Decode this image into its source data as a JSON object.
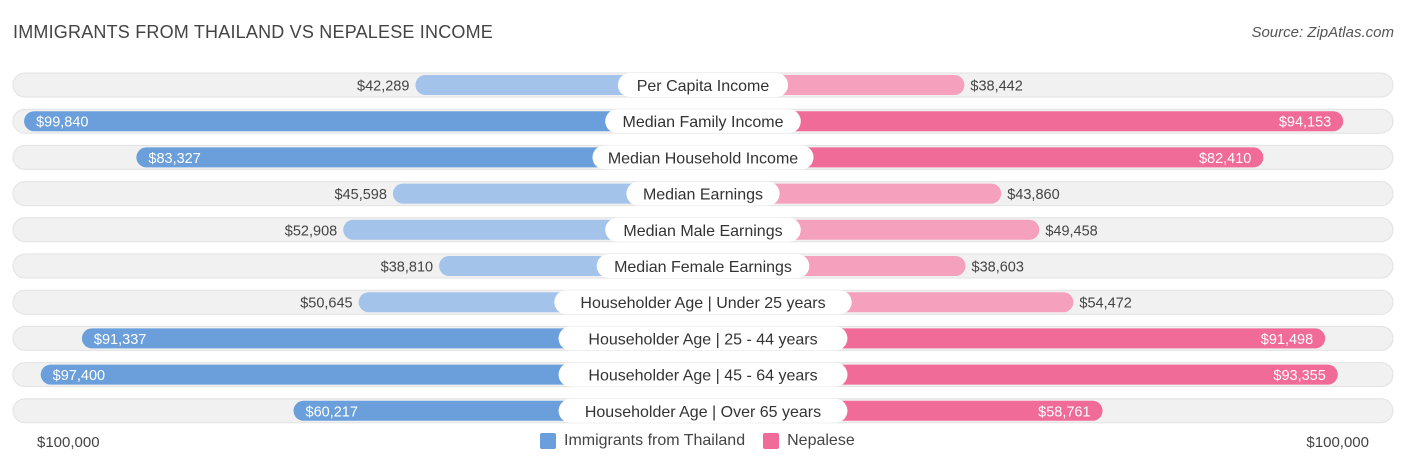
{
  "header": {
    "title": "IMMIGRANTS FROM THAILAND VS NEPALESE INCOME",
    "source": "Source: ZipAtlas.com"
  },
  "footer": {
    "left_max": "$100,000",
    "right_max": "$100,000"
  },
  "colors": {
    "left_dark": "#6a9fdb",
    "left_light": "#a3c3ea",
    "right_dark": "#f06b97",
    "right_light": "#f5a1bd",
    "track": "#f1f1f1"
  },
  "chart_data": {
    "type": "bar",
    "orientation": "horizontal-diverging",
    "title": "IMMIGRANTS FROM THAILAND VS NEPALESE INCOME",
    "xlim": [
      0,
      100000
    ],
    "categories": [
      "Per Capita Income",
      "Median Family Income",
      "Median Household Income",
      "Median Earnings",
      "Median Male Earnings",
      "Median Female Earnings",
      "Householder Age | Under 25 years",
      "Householder Age | 25 - 44 years",
      "Householder Age | 45 - 64 years",
      "Householder Age | Over 65 years"
    ],
    "series": [
      {
        "name": "Immigrants from Thailand",
        "values": [
          42289,
          99840,
          83327,
          45598,
          52908,
          38810,
          50645,
          91337,
          97400,
          60217
        ],
        "labels": [
          "$42,289",
          "$99,840",
          "$83,327",
          "$45,598",
          "$52,908",
          "$38,810",
          "$50,645",
          "$91,337",
          "$97,400",
          "$60,217"
        ]
      },
      {
        "name": "Nepalese",
        "values": [
          38442,
          94153,
          82410,
          43860,
          49458,
          38603,
          54472,
          91498,
          93355,
          58761
        ],
        "labels": [
          "$38,442",
          "$94,153",
          "$82,410",
          "$43,860",
          "$49,458",
          "$38,603",
          "$54,472",
          "$91,498",
          "$93,355",
          "$58,761"
        ]
      }
    ],
    "legend_position": "bottom-center"
  }
}
